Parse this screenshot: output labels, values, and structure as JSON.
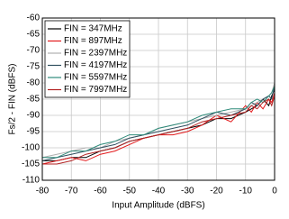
{
  "chart_data": {
    "type": "line",
    "x_label": "Input Amplitude (dBFS)",
    "y_label": "Fs/2 - FIN (dBFS)",
    "x": [
      -80,
      -75,
      -70,
      -65,
      -60,
      -55,
      -50,
      -45,
      -40,
      -35,
      -30,
      -25,
      -20,
      -15,
      -10,
      -8,
      -6,
      -4,
      -2,
      -1,
      0
    ],
    "series": [
      {
        "name": "FIN = 347MHz",
        "color": "#000000",
        "values": [
          -104,
          -104,
          -103,
          -103,
          -101,
          -100,
          -98,
          -97,
          -96,
          -95,
          -94,
          -93,
          -91,
          -91,
          -89,
          -88,
          -87,
          -85,
          -87,
          -84,
          -82
        ]
      },
      {
        "name": "FIN = 897MHz",
        "color": "#e31a1c",
        "values": [
          -105,
          -104,
          -103,
          -104,
          -102,
          -101,
          -99,
          -97,
          -96,
          -96,
          -95,
          -93,
          -90,
          -92,
          -87,
          -89,
          -86,
          -88,
          -85,
          -86,
          -83
        ]
      },
      {
        "name": "FIN = 2397MHz",
        "color": "#b0b0b0",
        "values": [
          -103,
          -102,
          -101,
          -100,
          -100,
          -98,
          -97,
          -96,
          -94,
          -93,
          -92,
          -91,
          -90,
          -89,
          -88,
          -87,
          -86,
          -85,
          -84,
          -83,
          -80
        ]
      },
      {
        "name": "FIN = 4197MHz",
        "color": "#2f4f5f",
        "values": [
          -104,
          -103,
          -102,
          -101,
          -100,
          -99,
          -97,
          -96,
          -95,
          -94,
          -93,
          -91,
          -89,
          -90,
          -88,
          -86,
          -87,
          -85,
          -84,
          -85,
          -81
        ]
      },
      {
        "name": "FIN = 5597MHz",
        "color": "#2e8b7a",
        "values": [
          -103,
          -103,
          -101,
          -101,
          -99,
          -98,
          -96,
          -96,
          -94,
          -93,
          -92,
          -90,
          -89,
          -88,
          -88,
          -86,
          -85,
          -86,
          -84,
          -83,
          -81
        ]
      },
      {
        "name": "FIN = 7997MHz",
        "color": "#b22222",
        "values": [
          -105,
          -105,
          -104,
          -102,
          -101,
          -100,
          -98,
          -97,
          -96,
          -95,
          -94,
          -92,
          -91,
          -90,
          -89,
          -87,
          -88,
          -86,
          -85,
          -87,
          -84
        ]
      }
    ],
    "xlim": [
      -80,
      0
    ],
    "xticks": [
      -80,
      -70,
      -60,
      -50,
      -40,
      -30,
      -20,
      -10,
      0
    ],
    "ylim": [
      -110,
      -60
    ],
    "yticks": [
      -110,
      -105,
      -100,
      -95,
      -90,
      -85,
      -80,
      -75,
      -70,
      -65,
      -60
    ],
    "grid": true,
    "legend": "upper-left"
  }
}
